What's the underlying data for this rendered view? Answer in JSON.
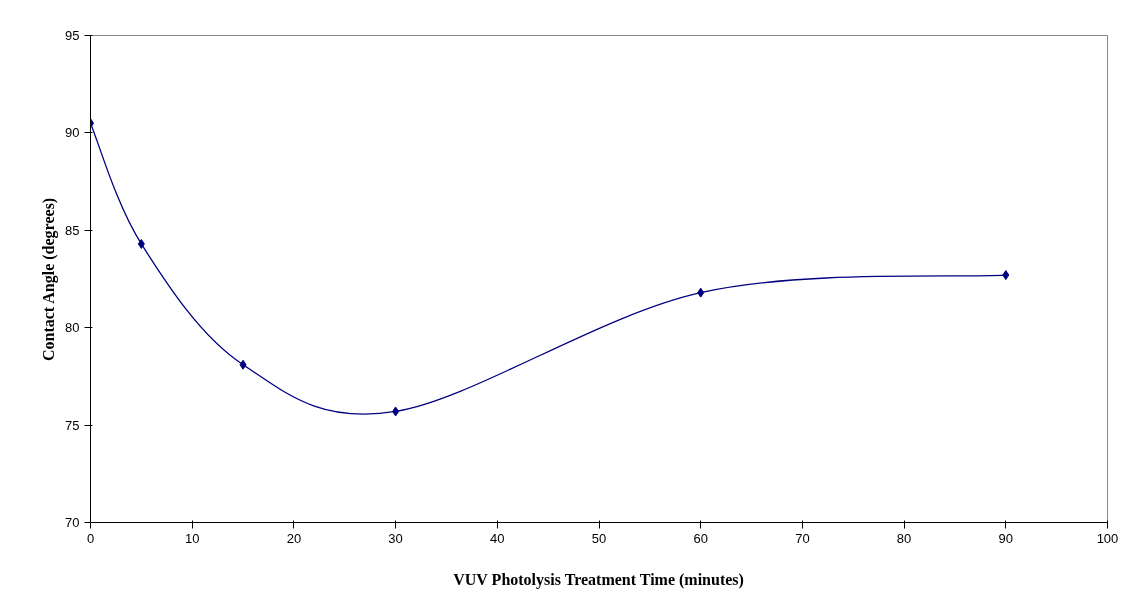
{
  "chart_data": {
    "type": "line",
    "xlabel": "VUV Photolysis Treatment Time (minutes)",
    "ylabel": "Contact Angle (degrees)",
    "x": [
      0,
      5,
      15,
      30,
      60,
      90
    ],
    "series": [
      {
        "color": "#000080",
        "values": [
          90.5,
          84.3,
          78.1,
          75.7,
          81.8,
          82.7
        ]
      }
    ],
    "xlim": [
      0,
      100
    ],
    "xticks": [
      0,
      10,
      20,
      30,
      40,
      50,
      60,
      70,
      80,
      90,
      100
    ],
    "ylim": [
      70,
      95
    ],
    "yticks": [
      70,
      75,
      80,
      85,
      90,
      95
    ],
    "marker": "diamond",
    "line_style": "solid",
    "grid": false
  }
}
